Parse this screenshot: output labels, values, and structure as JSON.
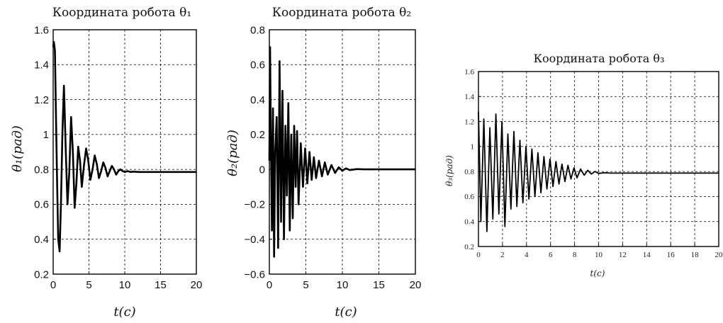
{
  "chart_data": [
    {
      "type": "line",
      "title": "Координата робота θ₁",
      "xlabel": "t(c)",
      "ylabel": "θ₁(рад)",
      "xlim": [
        0,
        20
      ],
      "ylim": [
        0.2,
        1.6
      ],
      "xticks": [
        "0",
        "5",
        "10",
        "15",
        "20"
      ],
      "yticks": [
        "0.2",
        "0.4",
        "0.6",
        "0.8",
        "1",
        "1.2",
        "1.4",
        "1.6"
      ],
      "grid": true,
      "series": [
        {
          "x": [
            0,
            0.1,
            0.25,
            0.4,
            0.55,
            0.7,
            0.9,
            1.1,
            1.3,
            1.5,
            1.75,
            2.0,
            2.25,
            2.5,
            2.75,
            3.0,
            3.25,
            3.5,
            3.75,
            4.0,
            4.3,
            4.6,
            4.9,
            5.2,
            5.5,
            5.8,
            6.1,
            6.4,
            6.7,
            7.0,
            7.3,
            7.6,
            7.9,
            8.2,
            8.5,
            8.8,
            9.1,
            9.4,
            9.7,
            10.0,
            10.4,
            10.8,
            11.2,
            12,
            13,
            14,
            15,
            16,
            17,
            18,
            19,
            20
          ],
          "y": [
            1.5,
            1.53,
            1.48,
            1.1,
            0.72,
            0.4,
            0.33,
            0.62,
            1.02,
            1.28,
            0.92,
            0.6,
            0.78,
            1.1,
            0.9,
            0.58,
            0.72,
            0.93,
            0.85,
            0.7,
            0.82,
            0.92,
            0.85,
            0.74,
            0.8,
            0.88,
            0.83,
            0.75,
            0.79,
            0.84,
            0.81,
            0.76,
            0.79,
            0.82,
            0.8,
            0.77,
            0.79,
            0.8,
            0.79,
            0.785,
            0.79,
            0.785,
            0.787,
            0.785,
            0.785,
            0.785,
            0.785,
            0.785,
            0.785,
            0.785,
            0.785,
            0.785
          ]
        }
      ]
    },
    {
      "type": "line",
      "title": "Координата робота θ₂",
      "xlabel": "t(c)",
      "ylabel": "θ₂(рад)",
      "xlim": [
        0,
        20
      ],
      "ylim": [
        -0.6,
        0.8
      ],
      "xticks": [
        "0",
        "5",
        "10",
        "15",
        "20"
      ],
      "yticks": [
        "−0.6",
        "−0.4",
        "−0.2",
        "0",
        "0.2",
        "0.4",
        "0.6",
        "0.8"
      ],
      "grid": true,
      "series": [
        {
          "x": [
            0,
            0.1,
            0.2,
            0.35,
            0.5,
            0.65,
            0.8,
            1.0,
            1.2,
            1.4,
            1.6,
            1.8,
            2.0,
            2.2,
            2.4,
            2.6,
            2.8,
            3.0,
            3.2,
            3.4,
            3.6,
            3.8,
            4.0,
            4.3,
            4.6,
            4.9,
            5.2,
            5.5,
            5.8,
            6.1,
            6.4,
            6.8,
            7.2,
            7.6,
            8.0,
            8.5,
            9.0,
            9.5,
            10,
            10.5,
            11,
            12,
            13,
            14,
            15,
            16,
            17,
            18,
            19,
            20
          ],
          "y": [
            0.05,
            0.7,
            0.2,
            -0.35,
            0.35,
            -0.5,
            0.1,
            0.3,
            -0.45,
            0.62,
            -0.3,
            0.45,
            -0.4,
            0.25,
            -0.15,
            0.38,
            -0.35,
            0.2,
            -0.28,
            0.25,
            -0.1,
            0.22,
            -0.2,
            0.15,
            -0.1,
            0.12,
            -0.08,
            0.1,
            -0.06,
            0.07,
            -0.05,
            0.05,
            -0.04,
            0.04,
            -0.03,
            0.025,
            -0.02,
            0.012,
            -0.008,
            0.006,
            -0.004,
            0.002,
            0,
            0,
            0,
            0,
            0,
            0,
            0,
            0
          ]
        }
      ]
    },
    {
      "type": "line",
      "title": "Координата робота θ₃",
      "xlabel": "t(c)",
      "ylabel": "θ₃(рад)",
      "xlim": [
        0,
        20
      ],
      "ylim": [
        0.2,
        1.6
      ],
      "xticks": [
        "0",
        "2",
        "4",
        "6",
        "8",
        "10",
        "12",
        "14",
        "16",
        "18",
        "20"
      ],
      "yticks": [
        "0.2",
        "0.4",
        "0.6",
        "0.8",
        "1",
        "1.2",
        "1.4",
        "1.6"
      ],
      "grid": true,
      "series": [
        {
          "x": [
            0,
            0.2,
            0.45,
            0.7,
            0.95,
            1.2,
            1.45,
            1.7,
            1.95,
            2.2,
            2.45,
            2.7,
            2.95,
            3.2,
            3.45,
            3.7,
            3.95,
            4.2,
            4.45,
            4.7,
            4.95,
            5.2,
            5.45,
            5.7,
            5.95,
            6.2,
            6.45,
            6.7,
            6.95,
            7.2,
            7.45,
            7.7,
            7.95,
            8.2,
            8.5,
            8.8,
            9.1,
            9.4,
            9.7,
            10.0,
            10.5,
            11,
            12,
            13,
            14,
            15,
            16,
            17,
            18,
            19,
            20
          ],
          "y": [
            1.28,
            0.4,
            1.22,
            0.32,
            1.15,
            0.42,
            1.26,
            0.46,
            1.2,
            0.36,
            1.1,
            0.5,
            1.12,
            0.52,
            1.05,
            0.55,
            1.0,
            0.58,
            0.98,
            0.6,
            0.95,
            0.63,
            0.92,
            0.66,
            0.9,
            0.68,
            0.88,
            0.7,
            0.86,
            0.72,
            0.85,
            0.74,
            0.83,
            0.75,
            0.82,
            0.77,
            0.81,
            0.78,
            0.8,
            0.785,
            0.79,
            0.787,
            0.787,
            0.787,
            0.787,
            0.787,
            0.787,
            0.787,
            0.787,
            0.787,
            0.787
          ]
        }
      ]
    }
  ]
}
